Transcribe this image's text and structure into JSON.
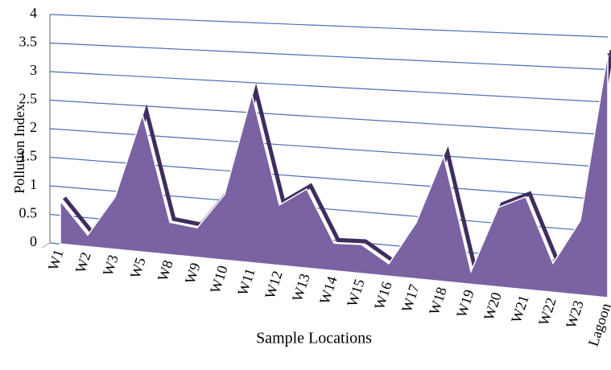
{
  "chart_data": {
    "type": "area3d",
    "y_label": "Pollution Index",
    "x_label": "Sample Locations",
    "categories": [
      "W1",
      "W2",
      "W3",
      "W5",
      "W8",
      "W9",
      "W10",
      "W11",
      "W12",
      "W13",
      "W14",
      "W15",
      "W16",
      "W17",
      "W18",
      "W19",
      "W20",
      "W21",
      "W22",
      "W23",
      "Lagoon"
    ],
    "values": [
      0.75,
      0.2,
      0.9,
      2.35,
      0.55,
      0.5,
      1.1,
      2.8,
      1.0,
      1.3,
      0.45,
      0.47,
      0.2,
      0.9,
      2.0,
      0.2,
      1.25,
      1.45,
      0.45,
      1.15,
      3.75
    ],
    "color": "#7b62a3",
    "ylim": [
      0,
      4
    ],
    "yticks": [
      0,
      0.5,
      1,
      1.5,
      2,
      2.5,
      3,
      3.5,
      4
    ],
    "grid": true
  }
}
